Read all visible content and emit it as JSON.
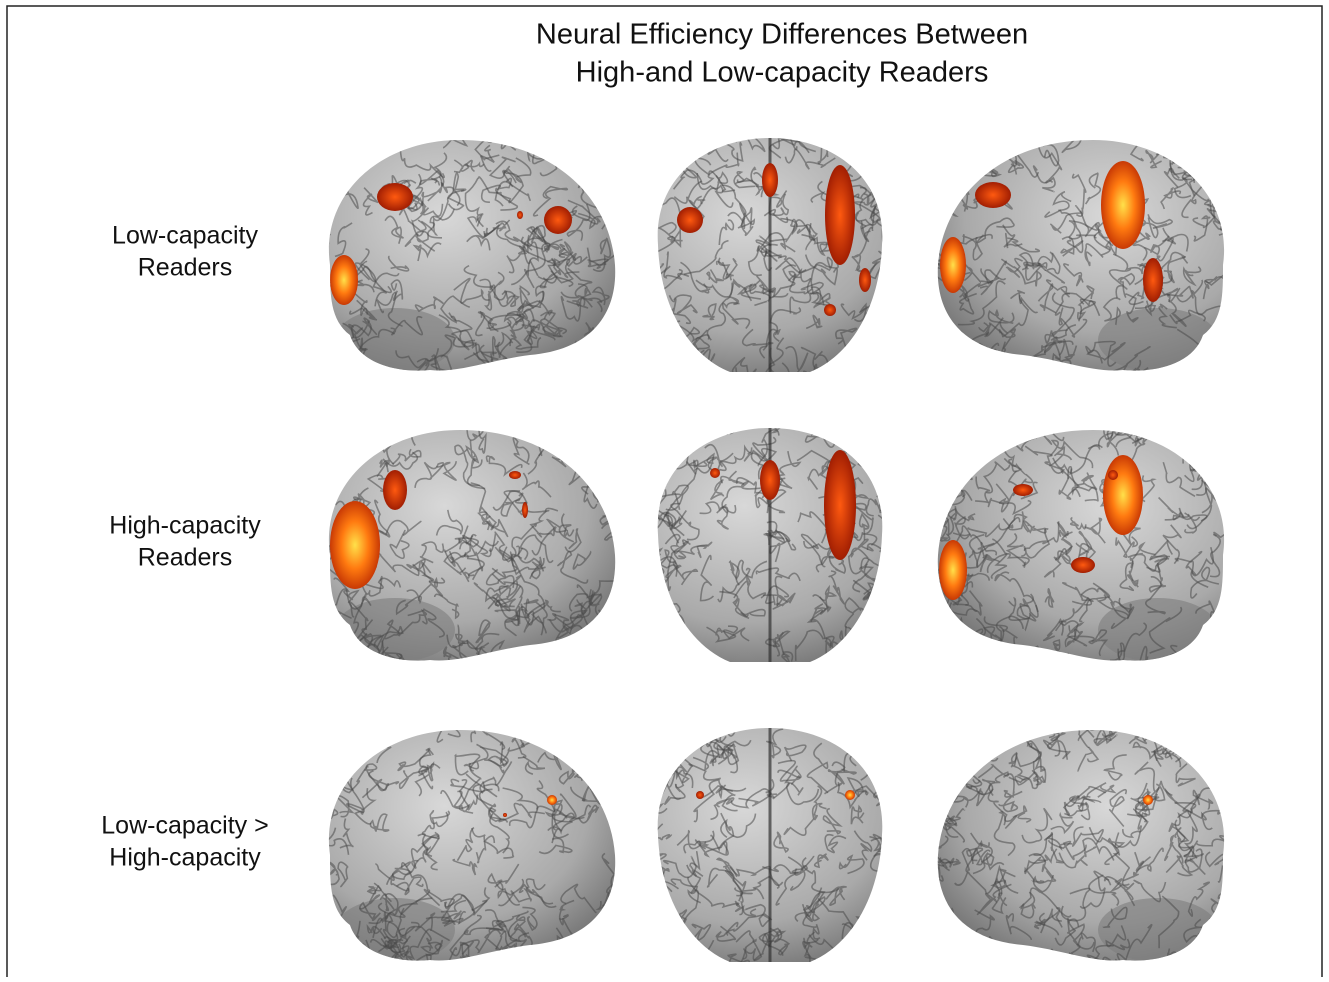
{
  "figure": {
    "title": [
      "Neural Efficiency Differences Between",
      "High-and Low-capacity Readers"
    ],
    "rows": [
      {
        "label": [
          "Low-capacity",
          "Readers"
        ]
      },
      {
        "label": [
          "High-capacity",
          "Readers"
        ]
      },
      {
        "label": [
          "Low-capacity >",
          "High-capacity"
        ]
      }
    ]
  }
}
